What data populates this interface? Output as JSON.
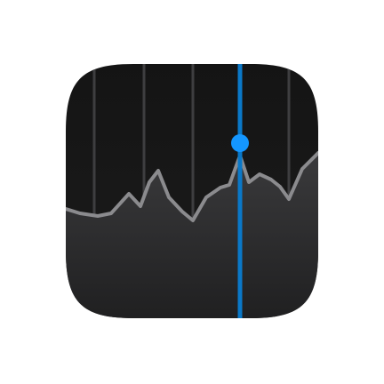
{
  "icon": {
    "name": "stocks-app-icon",
    "colors": {
      "background_top": "#141414",
      "background_bottom": "#1c1c1c",
      "gridline": "#3e3e40",
      "line": "#8b8b8e",
      "area_top": "#3a3a3c",
      "area_bottom": "#1e1e1f",
      "cursor": "#0a78c8",
      "marker": "#1496ff"
    }
  }
}
